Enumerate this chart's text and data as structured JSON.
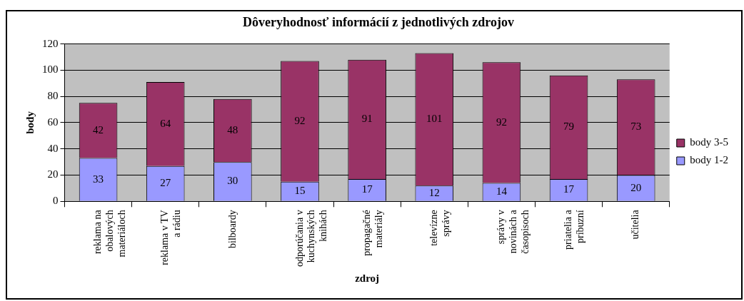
{
  "chart_data": {
    "type": "bar",
    "title": "Dôveryhodnosť informácií z jednotlivých zdrojov",
    "xlabel": "zdroj",
    "ylabel": "body",
    "categories": [
      "reklama na\nobalových\nmateriáloch",
      "reklama v TV\na rádiu",
      "bilboardy",
      "odporúčania v\nkuchynských\nknihách",
      "propagačné\nmateriály",
      "televízne\nsprávy",
      "správy v\nnovinách a\nčasopisoch",
      "priatelia a\npríbuzní",
      "učitelia"
    ],
    "series": [
      {
        "name": "body 1-2",
        "color": "#9999ff",
        "values": [
          33,
          27,
          30,
          15,
          17,
          12,
          14,
          17,
          20
        ]
      },
      {
        "name": "body 3-5",
        "color": "#993366",
        "values": [
          42,
          64,
          48,
          92,
          91,
          101,
          92,
          79,
          73
        ]
      }
    ],
    "stacked": true,
    "data_labels": true,
    "ylim": [
      0,
      120
    ],
    "yticks": [
      0,
      20,
      40,
      60,
      80,
      100,
      120
    ],
    "grid": "y",
    "legend": "right"
  }
}
